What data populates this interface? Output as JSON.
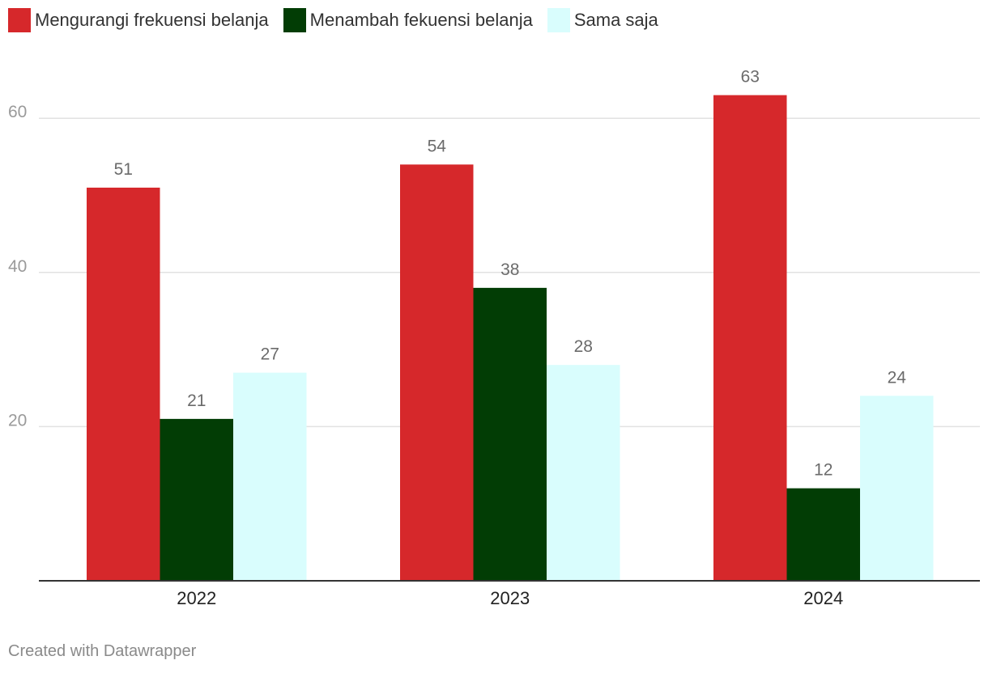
{
  "chart_data": {
    "type": "bar",
    "categories": [
      "2022",
      "2023",
      "2024"
    ],
    "series": [
      {
        "name": "Mengurangi frekuensi belanja",
        "values": [
          51,
          54,
          63
        ],
        "color": "#d6282b"
      },
      {
        "name": "Menambah fekuensi belanja",
        "values": [
          21,
          38,
          12
        ],
        "color": "#023d05"
      },
      {
        "name": "Sama saja",
        "values": [
          27,
          28,
          24
        ],
        "color": "#d9fdfd"
      }
    ],
    "y_ticks": [
      "20",
      "40",
      "60"
    ],
    "ylim": [
      0,
      70
    ],
    "grid": true,
    "legend_position": "top-left",
    "title": "",
    "xlabel": "",
    "ylabel": ""
  },
  "footer": {
    "credit": "Created with Datawrapper"
  }
}
